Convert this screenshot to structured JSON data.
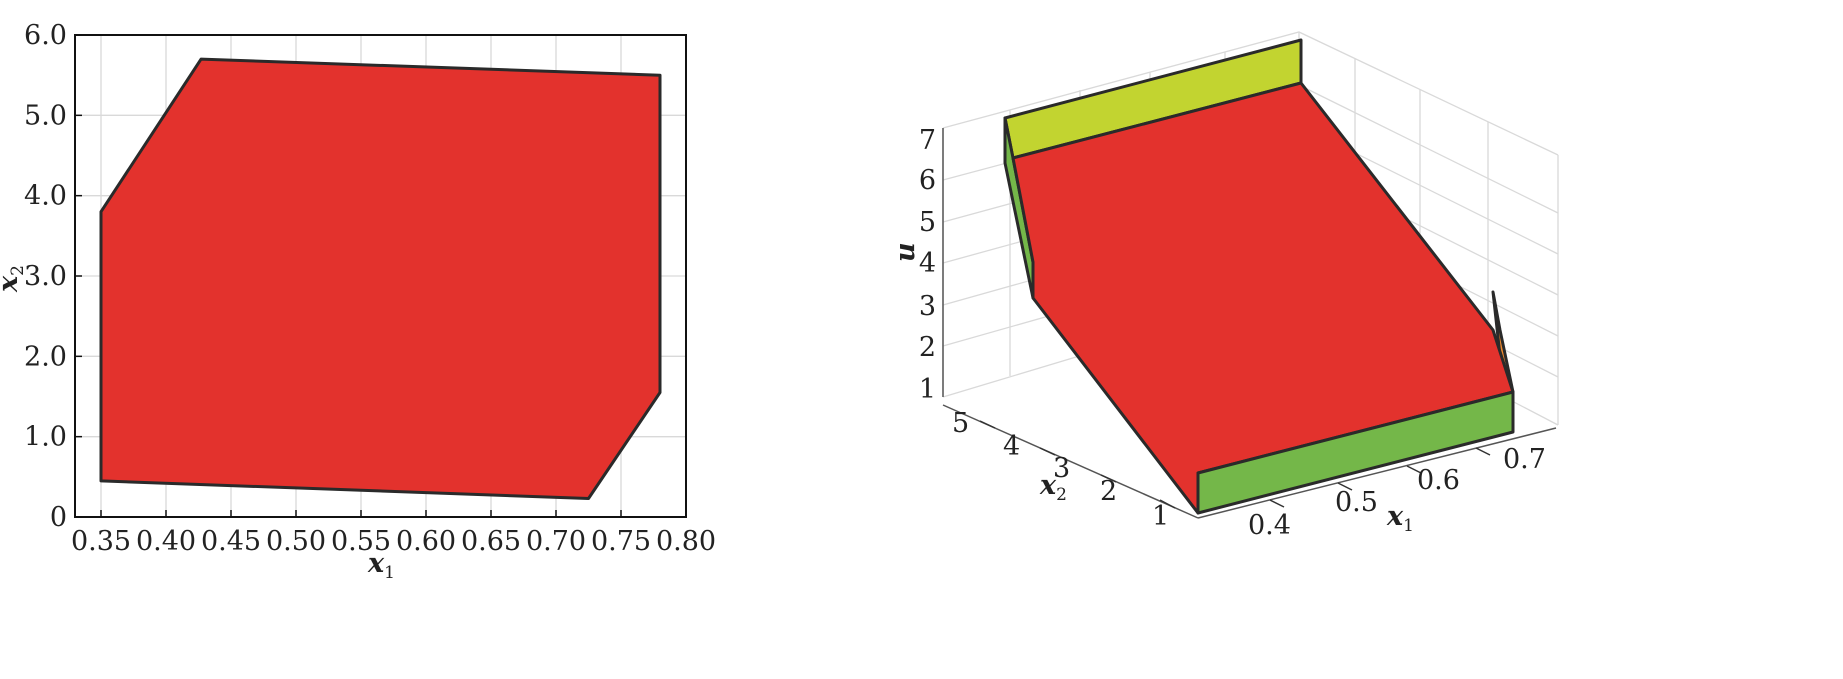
{
  "chart_data": [
    {
      "type": "area",
      "xlabel": "x",
      "xlabel_sub": "1",
      "ylabel": "x",
      "ylabel_sub": "2",
      "xlim": [
        0.33,
        0.8
      ],
      "ylim": [
        0,
        6.0
      ],
      "x_ticks": [
        "0.35",
        "0.40",
        "0.45",
        "0.50",
        "0.55",
        "0.60",
        "0.65",
        "0.70",
        "0.75",
        "0.80"
      ],
      "x_tick_values": [
        0.35,
        0.4,
        0.45,
        0.5,
        0.55,
        0.6,
        0.65,
        0.7,
        0.75,
        0.8
      ],
      "y_ticks": [
        "0",
        "1.0",
        "2.0",
        "3.0",
        "4.0",
        "5.0",
        "6.0"
      ],
      "y_tick_values": [
        0,
        1.0,
        2.0,
        3.0,
        4.0,
        5.0,
        6.0
      ],
      "grid": true,
      "region_color": "#e3322d",
      "region": [
        {
          "x": 0.35,
          "y": 0.45
        },
        {
          "x": 0.35,
          "y": 3.8
        },
        {
          "x": 0.427,
          "y": 5.7
        },
        {
          "x": 0.78,
          "y": 5.5
        },
        {
          "x": 0.78,
          "y": 1.55
        },
        {
          "x": 0.725,
          "y": 0.23
        }
      ]
    },
    {
      "type": "surface3d",
      "xlabel": "x",
      "xlabel_sub": "1",
      "ylabel": "x",
      "ylabel_sub": "2",
      "zlabel": "u",
      "x_ticks": [
        "0.4",
        "0.5",
        "0.6",
        "0.7"
      ],
      "x_tick_values": [
        0.4,
        0.5,
        0.6,
        0.7
      ],
      "y_ticks": [
        "1",
        "2",
        "3",
        "4",
        "5"
      ],
      "y_tick_values": [
        1,
        2,
        3,
        4,
        5
      ],
      "z_ticks": [
        "1",
        "2",
        "3",
        "4",
        "5",
        "6",
        "7"
      ],
      "z_tick_values": [
        1,
        2,
        3,
        4,
        5,
        6,
        7
      ],
      "colors": {
        "top": "#e3322d",
        "far_wall": "#c2d430",
        "near_wall": "#74b749",
        "side_wall": "#74b749",
        "corner_wall": "#ef8a2f"
      }
    }
  ]
}
